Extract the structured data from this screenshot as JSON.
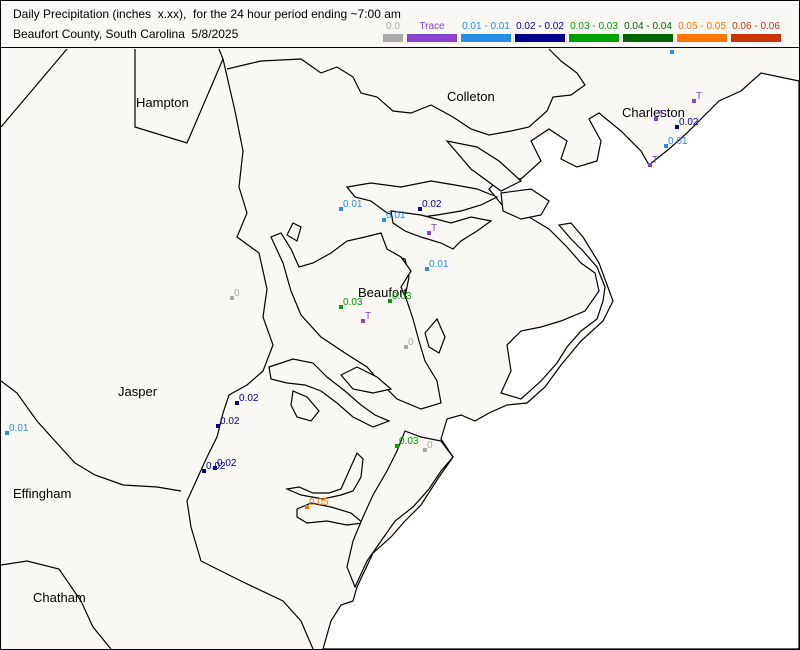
{
  "title": {
    "line1": "Daily Precipitation (inches  x.xx),  for the 24 hour period ending ~7:00 am",
    "line2": "Beaufort County, South Carolina  5/8/2025"
  },
  "legend": [
    {
      "label": "0.0",
      "color": "#aaaaaa"
    },
    {
      "label": "Trace",
      "color": "#8844cc"
    },
    {
      "label": "0.01 - 0.01",
      "color": "#2a8ee8"
    },
    {
      "label": "0.02 - 0.02",
      "color": "#000088"
    },
    {
      "label": "0.03 - 0.03",
      "color": "#00a000"
    },
    {
      "label": "0.04 - 0.04",
      "color": "#006600"
    },
    {
      "label": "0.05 - 0.05",
      "color": "#ff7700"
    },
    {
      "label": "0.06 - 0.06",
      "color": "#cc3300"
    }
  ],
  "places": {
    "hampton": "Hampton",
    "colleton": "Colleton",
    "charleston": "Charleston",
    "beaufort": "Beaufort",
    "jasper": "Jasper",
    "effingham": "Effingham",
    "chatham": "Chatham"
  },
  "observations": [
    {
      "value": "0.01",
      "color": "#2a8ee8"
    },
    {
      "value": "0.01",
      "color": "#2a8ee8"
    },
    {
      "value": "0.02",
      "color": "#000088"
    },
    {
      "value": "T",
      "color": "#8844cc"
    },
    {
      "value": "0.01",
      "color": "#2a8ee8"
    },
    {
      "value": "0",
      "color": "#aaaaaa"
    },
    {
      "value": "0.03",
      "color": "#00a000"
    },
    {
      "value": "0.03",
      "color": "#00a000"
    },
    {
      "value": "T",
      "color": "#8844cc"
    },
    {
      "value": "0",
      "color": "#aaaaaa"
    },
    {
      "value": "0.02",
      "color": "#000088"
    },
    {
      "value": "0.02",
      "color": "#000088"
    },
    {
      "value": "0.02",
      "color": "#000088"
    },
    {
      "value": "0.02",
      "color": "#000088"
    },
    {
      "value": "0.01",
      "color": "#2a8ee8"
    },
    {
      "value": "0.03",
      "color": "#00a000"
    },
    {
      "value": "0",
      "color": "#aaaaaa"
    },
    {
      "value": "0.05",
      "color": "#ff7700"
    },
    {
      "value": "T",
      "color": "#8844cc"
    },
    {
      "value": "T",
      "color": "#8844cc"
    },
    {
      "value": "0.02",
      "color": "#000088"
    },
    {
      "value": "0.01",
      "color": "#2a8ee8"
    },
    {
      "value": "T",
      "color": "#8844cc"
    },
    {
      "value": "",
      "color": "#2a8ee8"
    }
  ]
}
